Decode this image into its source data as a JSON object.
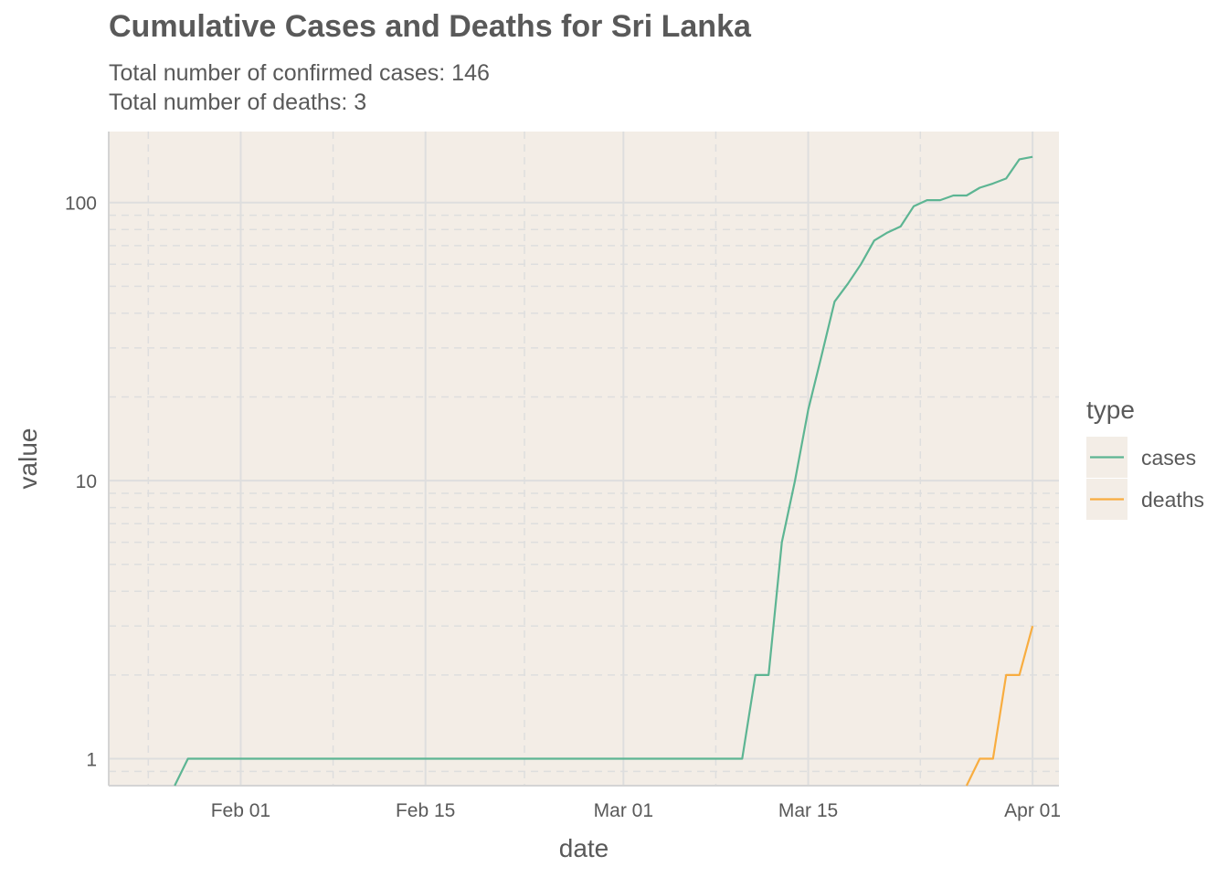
{
  "chart_data": {
    "type": "line",
    "title": "Cumulative Cases and Deaths for Sri Lanka",
    "subtitle_lines": [
      "Total number of confirmed cases: 146",
      "Total number of deaths: 3"
    ],
    "xlabel": "date",
    "ylabel": "value",
    "y_scale": "log10",
    "ylim": [
      0.8,
      180
    ],
    "xlim": [
      "2020-01-22",
      "2020-04-03"
    ],
    "x_ticks": [
      {
        "date": "2020-02-01",
        "label": "Feb 01"
      },
      {
        "date": "2020-02-15",
        "label": "Feb 15"
      },
      {
        "date": "2020-03-01",
        "label": "Mar 01"
      },
      {
        "date": "2020-03-15",
        "label": "Mar 15"
      },
      {
        "date": "2020-04-01",
        "label": "Apr 01"
      }
    ],
    "y_ticks": [
      {
        "value": 1,
        "label": "1"
      },
      {
        "value": 10,
        "label": "10"
      },
      {
        "value": 100,
        "label": "100"
      }
    ],
    "grid": true,
    "legend": {
      "title": "type",
      "position": "right"
    },
    "series": [
      {
        "name": "cases",
        "color": "#5db593",
        "x": [
          "2020-01-27",
          "2020-01-28",
          "2020-03-10",
          "2020-03-11",
          "2020-03-12",
          "2020-03-13",
          "2020-03-14",
          "2020-03-15",
          "2020-03-16",
          "2020-03-17",
          "2020-03-18",
          "2020-03-19",
          "2020-03-20",
          "2020-03-21",
          "2020-03-22",
          "2020-03-23",
          "2020-03-24",
          "2020-03-25",
          "2020-03-26",
          "2020-03-27",
          "2020-03-28",
          "2020-03-29",
          "2020-03-30",
          "2020-03-31",
          "2020-04-01"
        ],
        "y": [
          0.8,
          1,
          1,
          2,
          2,
          6,
          10,
          18,
          28,
          44,
          51,
          60,
          73,
          78,
          82,
          97,
          102,
          102,
          106,
          106,
          113,
          117,
          122,
          143,
          146
        ]
      },
      {
        "name": "deaths",
        "color": "#f8ad40",
        "x": [
          "2020-03-27",
          "2020-03-28",
          "2020-03-29",
          "2020-03-30",
          "2020-03-31",
          "2020-04-01"
        ],
        "y": [
          0.8,
          1,
          1,
          2,
          2,
          3
        ]
      }
    ]
  }
}
